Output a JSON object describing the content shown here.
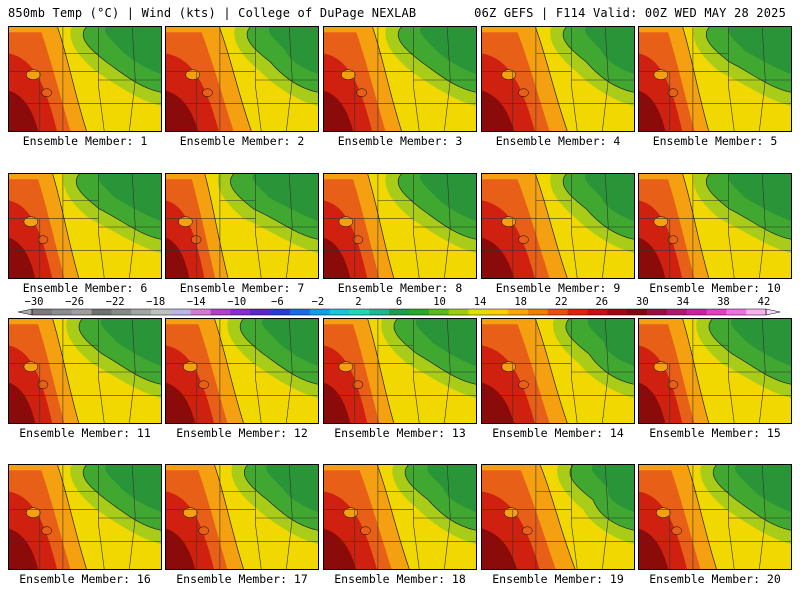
{
  "header": {
    "left_title": "850mb Temp (°C) | Wind (kts) | College of DuPage NEXLAB",
    "right_title": "06Z GEFS | F114 Valid: 00Z WED MAY 28 2025"
  },
  "panels": [
    {
      "label": "Ensemble Member: 1",
      "hot": 0.5,
      "cool": 0.55
    },
    {
      "label": "Ensemble Member: 2",
      "hot": 0.55,
      "cool": 0.5
    },
    {
      "label": "Ensemble Member: 3",
      "hot": 0.5,
      "cool": 0.55
    },
    {
      "label": "Ensemble Member: 4",
      "hot": 0.55,
      "cool": 0.5
    },
    {
      "label": "Ensemble Member: 5",
      "hot": 0.45,
      "cool": 0.6
    },
    {
      "label": "Ensemble Member: 6",
      "hot": 0.45,
      "cool": 0.6
    },
    {
      "label": "Ensemble Member: 7",
      "hot": 0.4,
      "cool": 0.62
    },
    {
      "label": "Ensemble Member: 8",
      "hot": 0.45,
      "cool": 0.55
    },
    {
      "label": "Ensemble Member: 9",
      "hot": 0.55,
      "cool": 0.5
    },
    {
      "label": "Ensemble Member: 10",
      "hot": 0.45,
      "cool": 0.6
    },
    {
      "label": "Ensemble Member: 11",
      "hot": 0.45,
      "cool": 0.58
    },
    {
      "label": "Ensemble Member: 12",
      "hot": 0.5,
      "cool": 0.55
    },
    {
      "label": "Ensemble Member: 13",
      "hot": 0.45,
      "cool": 0.58
    },
    {
      "label": "Ensemble Member: 14",
      "hot": 0.55,
      "cool": 0.48
    },
    {
      "label": "Ensemble Member: 15",
      "hot": 0.45,
      "cool": 0.58
    },
    {
      "label": "Ensemble Member: 16",
      "hot": 0.5,
      "cool": 0.55
    },
    {
      "label": "Ensemble Member: 17",
      "hot": 0.5,
      "cool": 0.52
    },
    {
      "label": "Ensemble Member: 18",
      "hot": 0.55,
      "cool": 0.5
    },
    {
      "label": "Ensemble Member: 19",
      "hot": 0.6,
      "cool": 0.45
    },
    {
      "label": "Ensemble Member: 20",
      "hot": 0.5,
      "cool": 0.55
    }
  ],
  "colorbar": {
    "tick_labels": [
      "−30",
      "−26",
      "−22",
      "−18",
      "−14",
      "−10",
      "−6",
      "−2",
      "2",
      "6",
      "10",
      "14",
      "18",
      "22",
      "26",
      "30",
      "34",
      "38",
      "42"
    ],
    "colors": [
      "#7a7a7a",
      "#8c8c8c",
      "#9e9e9e",
      "#707070",
      "#888888",
      "#a4a4a4",
      "#c0c0c0",
      "#b8b8e8",
      "#d27ad2",
      "#b040c8",
      "#8a2ad0",
      "#5a28c8",
      "#2a3ad8",
      "#1a6ae6",
      "#10a0e8",
      "#18c8d8",
      "#20d8b8",
      "#20b890",
      "#1a9e50",
      "#2aa82a",
      "#5ab820",
      "#a0cc10",
      "#e0e000",
      "#f8d000",
      "#f8a800",
      "#f08000",
      "#e85010",
      "#e02010",
      "#c81010",
      "#a00810",
      "#800810",
      "#981040",
      "#b01870",
      "#c820a0",
      "#e040c0",
      "#f070e0",
      "#f8b0f0"
    ]
  },
  "map_colors": {
    "hot_dark": "#8b0a0a",
    "hot": "#d02010",
    "warm": "#e86018",
    "orange": "#f4a010",
    "yellow": "#f0d800",
    "lime": "#a8cc18",
    "green": "#40a830",
    "dark_green": "#2a9438",
    "teal": "#18b890"
  }
}
